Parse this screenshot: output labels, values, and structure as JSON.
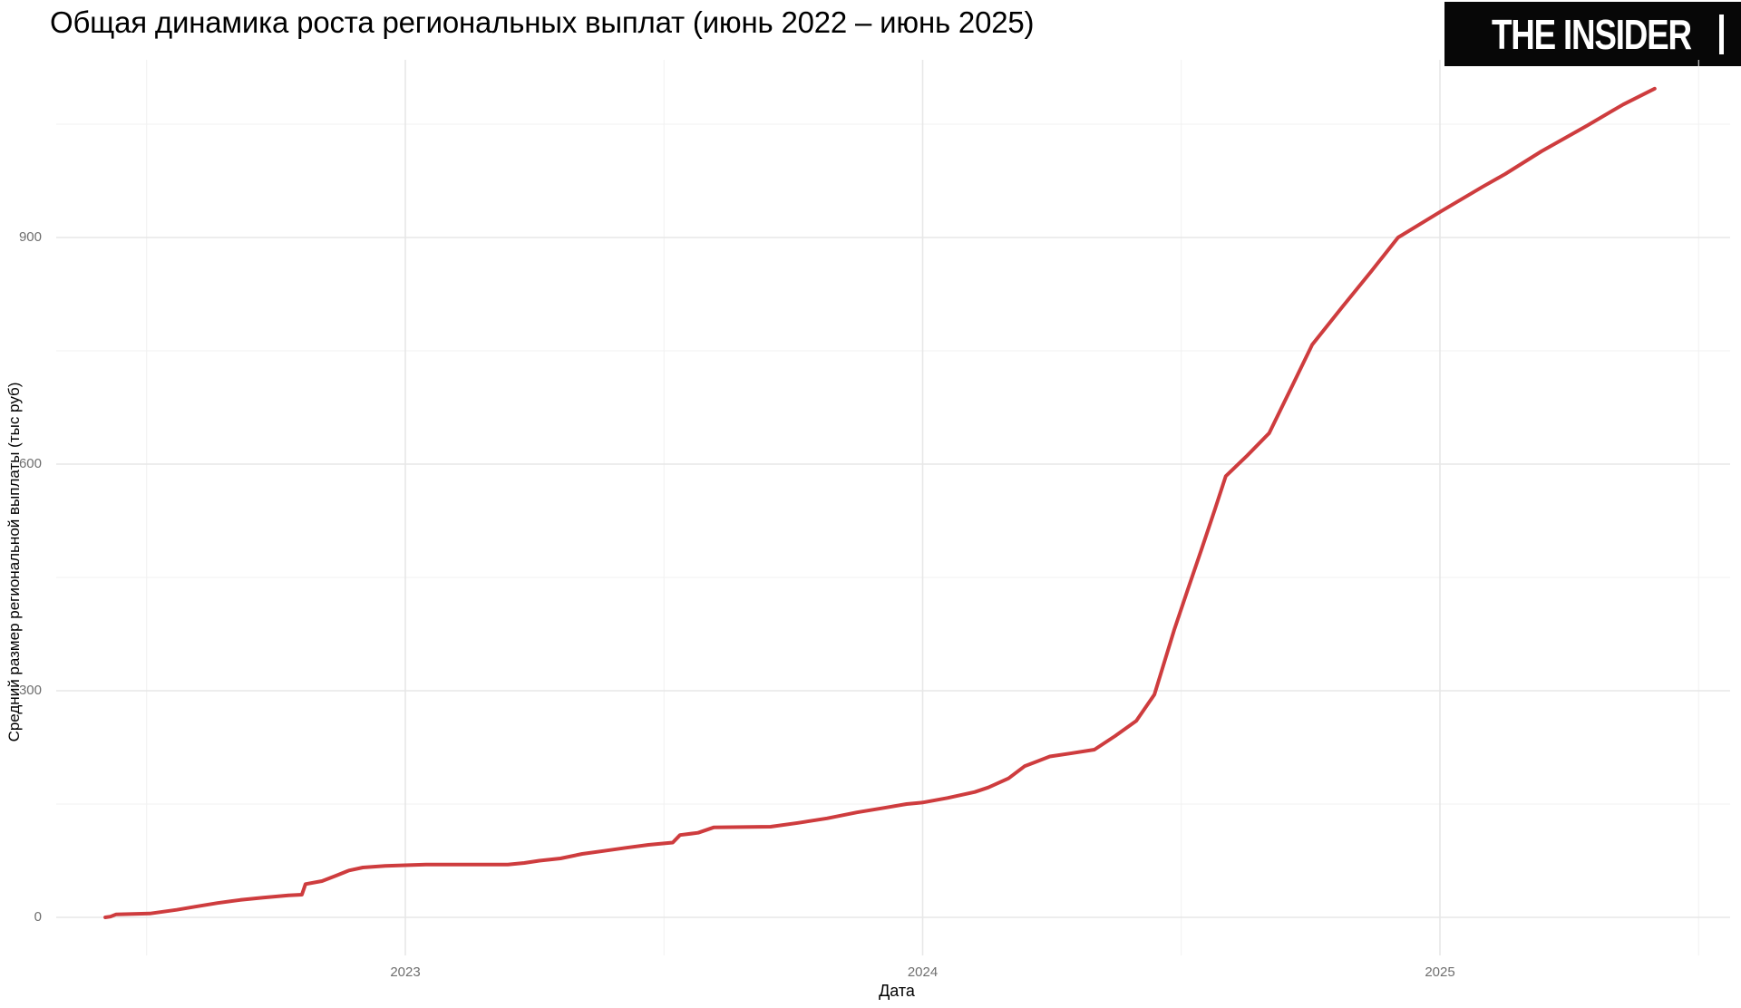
{
  "header": {
    "title": "Общая динамика роста региональных выплат (июнь 2022 – июнь 2025)",
    "logo_text": "THE INSIDER"
  },
  "chart_data": {
    "type": "line",
    "title": "Общая динамика роста региональных выплат (июнь 2022 – июнь 2025)",
    "xlabel": "Дата",
    "ylabel": "Средний размер региональной выплаты (тыс руб)",
    "grid": true,
    "legend_position": "none",
    "line_color": "#ce3c3e",
    "grid_major_color": "#e7e7e7",
    "grid_minor_color": "#f1f1f1",
    "tick_label_color": "#6e6e6e",
    "x_range_years": [
      2022.33,
      2025.6
    ],
    "ylim": [
      -55,
      1155
    ],
    "x_ticks": [
      {
        "label": "2023",
        "value": 2023
      },
      {
        "label": "2024",
        "value": 2024
      },
      {
        "label": "2025",
        "value": 2025
      }
    ],
    "x_minor_ticks": [
      2022.5,
      2023.5,
      2024.5,
      2025.5
    ],
    "y_ticks": [
      {
        "label": "0",
        "value": 0
      },
      {
        "label": "300",
        "value": 300
      },
      {
        "label": "600",
        "value": 600
      },
      {
        "label": "900",
        "value": 900
      }
    ],
    "y_minor_ticks": [
      150,
      450,
      750,
      1050
    ],
    "series": [
      {
        "name": "Средний размер региональной выплаты (тыс руб)",
        "points": [
          [
            2022.42,
            0
          ],
          [
            2022.43,
            1
          ],
          [
            2022.441,
            4
          ],
          [
            2022.506,
            5
          ],
          [
            2022.558,
            10
          ],
          [
            2022.593,
            14
          ],
          [
            2022.637,
            19
          ],
          [
            2022.681,
            23
          ],
          [
            2022.725,
            26
          ],
          [
            2022.774,
            29
          ],
          [
            2022.8,
            30
          ],
          [
            2022.807,
            44
          ],
          [
            2022.839,
            48
          ],
          [
            2022.865,
            55
          ],
          [
            2022.891,
            62
          ],
          [
            2022.918,
            66
          ],
          [
            2022.961,
            68
          ],
          [
            2023.0,
            69
          ],
          [
            2023.04,
            70
          ],
          [
            2023.198,
            70
          ],
          [
            2023.23,
            72
          ],
          [
            2023.259,
            75
          ],
          [
            2023.3,
            78
          ],
          [
            2023.342,
            84
          ],
          [
            2023.384,
            88
          ],
          [
            2023.426,
            92
          ],
          [
            2023.47,
            96
          ],
          [
            2023.517,
            99
          ],
          [
            2023.531,
            109
          ],
          [
            2023.566,
            112
          ],
          [
            2023.596,
            119
          ],
          [
            2023.706,
            120
          ],
          [
            2023.759,
            125
          ],
          [
            2023.815,
            131
          ],
          [
            2023.873,
            139
          ],
          [
            2023.926,
            145
          ],
          [
            2023.969,
            150
          ],
          [
            2024.0,
            152
          ],
          [
            2024.048,
            158
          ],
          [
            2024.101,
            166
          ],
          [
            2024.127,
            172
          ],
          [
            2024.166,
            184
          ],
          [
            2024.197,
            200
          ],
          [
            2024.246,
            213
          ],
          [
            2024.285,
            217
          ],
          [
            2024.332,
            222
          ],
          [
            2024.372,
            240
          ],
          [
            2024.413,
            260
          ],
          [
            2024.448,
            295
          ],
          [
            2024.486,
            380
          ],
          [
            2024.513,
            435
          ],
          [
            2024.539,
            487
          ],
          [
            2024.565,
            540
          ],
          [
            2024.586,
            584
          ],
          [
            2024.627,
            611
          ],
          [
            2024.67,
            641
          ],
          [
            2024.714,
            703
          ],
          [
            2024.753,
            758
          ],
          [
            2024.811,
            808
          ],
          [
            2024.867,
            855
          ],
          [
            2024.919,
            900
          ],
          [
            2025.003,
            935
          ],
          [
            2025.082,
            967
          ],
          [
            2025.126,
            984
          ],
          [
            2025.196,
            1014
          ],
          [
            2025.284,
            1048
          ],
          [
            2025.354,
            1076
          ],
          [
            2025.415,
            1097
          ]
        ]
      }
    ]
  }
}
